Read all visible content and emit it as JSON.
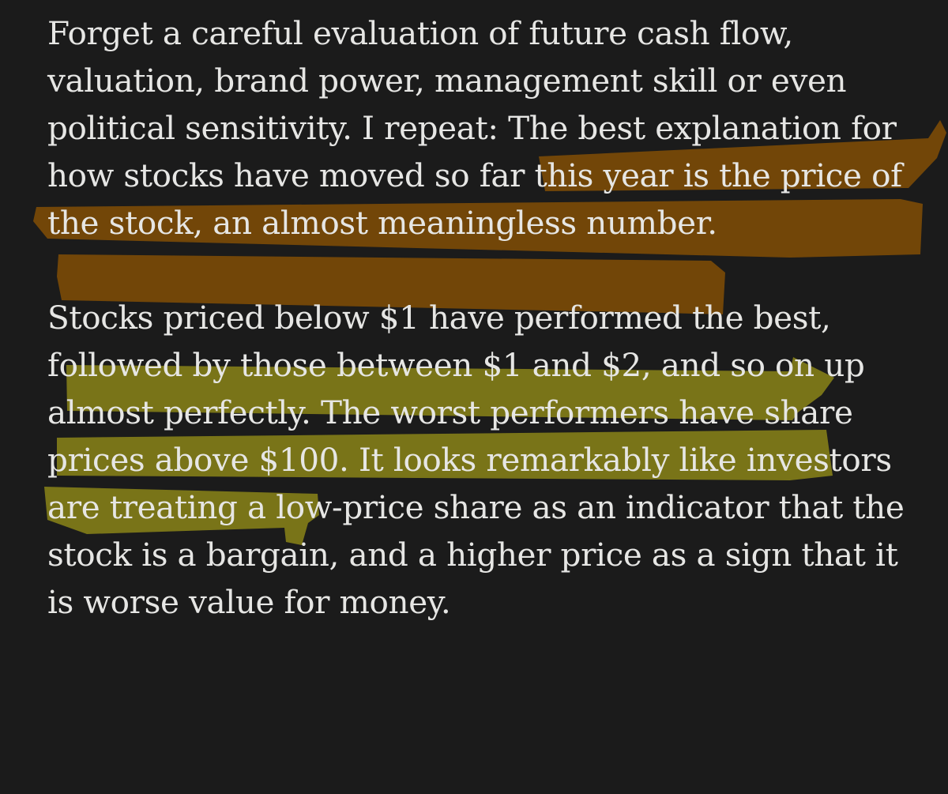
{
  "article": {
    "paragraphs": [
      {
        "lines": [
          "Forget a careful evaluation of future cash flow,",
          "valuation, brand power, management skill or even",
          "political sensitivity. I repeat: The best explanation for",
          "how stocks have moved so far this year is the price of",
          "the stock, an almost meaningless number."
        ]
      },
      {
        "lines": [
          "Stocks priced below $1 have performed the best,",
          "followed by those between $1 and $2, and so on up",
          "almost perfectly. The worst performers have share",
          "prices above $100. It looks remarkably like investors",
          "are treating a low-price share as an indicator that the",
          "stock is a bargain, and a higher price as a sign that it",
          "is worse value for money."
        ]
      }
    ]
  },
  "colors": {
    "background": "#1b1b1b",
    "text": "#e6e6e4",
    "highlight_orange": "#7a4a06",
    "highlight_yellow": "#8a8418"
  }
}
